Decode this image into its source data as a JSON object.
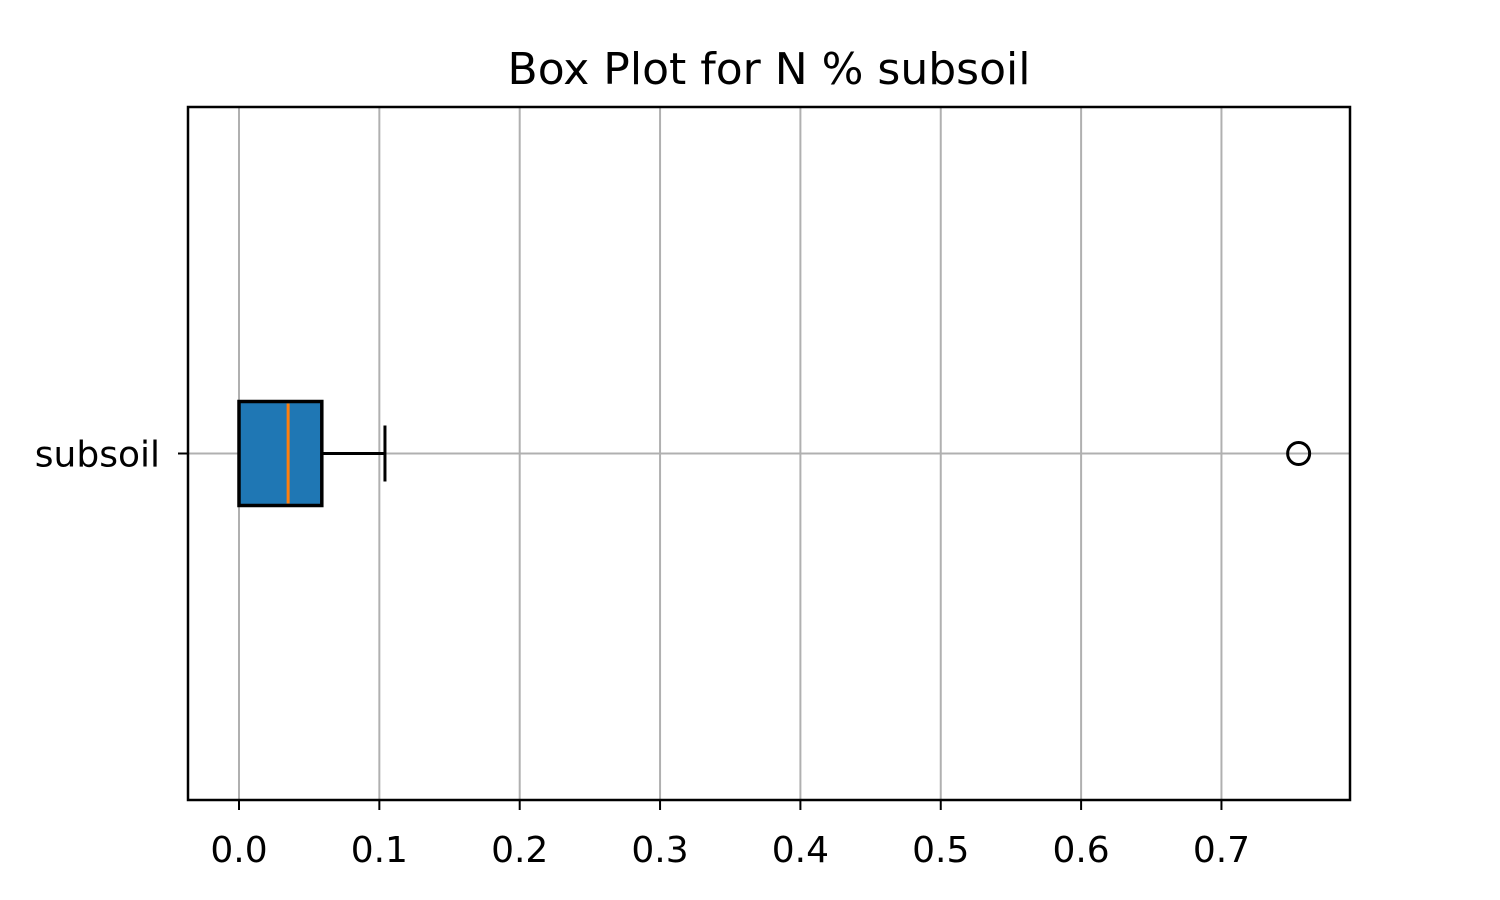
{
  "chart_data": {
    "type": "boxplot",
    "orientation": "horizontal",
    "title": "Box Plot for N % subsoil",
    "xlabel": "",
    "ylabel": "",
    "xlim": [
      -0.037,
      0.792
    ],
    "xticks": [
      0.0,
      0.1,
      0.2,
      0.3,
      0.4,
      0.5,
      0.6,
      0.7
    ],
    "xtick_labels": [
      "0.0",
      "0.1",
      "0.2",
      "0.3",
      "0.4",
      "0.5",
      "0.6",
      "0.7"
    ],
    "grid": true,
    "series": [
      {
        "category": "subsoil",
        "whisker_low": 0.0,
        "q1": 0.0,
        "median": 0.035,
        "q3": 0.059,
        "whisker_high": 0.104,
        "outliers": [
          0.755
        ]
      }
    ],
    "colors": {
      "box_fill": "#1f77b4",
      "median_line": "#ff7f0e",
      "grid": "#b0b0b0",
      "edge": "#000000"
    }
  }
}
